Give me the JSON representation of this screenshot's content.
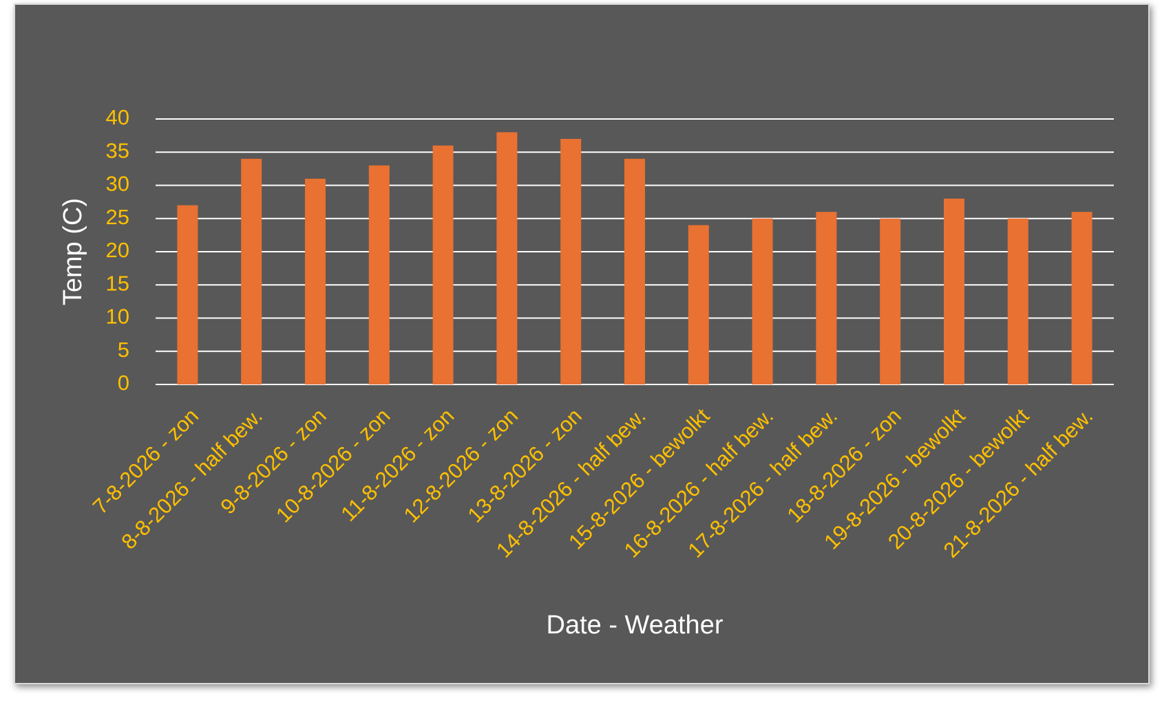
{
  "chart_data": {
    "type": "bar",
    "x_label": "Date - Weather",
    "y_label": "Temp (C)",
    "categories": [
      "7-8-2026 - zon",
      "8-8-2026 - half bew.",
      "9-8-2026 - zon",
      "10-8-2026 - zon",
      "11-8-2026 - zon",
      "12-8-2026 - zon",
      "13-8-2026 - zon",
      "14-8-2026 - half bew.",
      "15-8-2026 - bewolkt",
      "16-8-2026 - half bew.",
      "17-8-2026 - half bew.",
      "18-8-2026 - zon",
      "19-8-2026 - bewolkt",
      "20-8-2026 - bewolkt",
      "21-8-2026 - half bew."
    ],
    "values": [
      27,
      34,
      31,
      33,
      36,
      38,
      37,
      34,
      24,
      25,
      26,
      25,
      28,
      25,
      26
    ],
    "color": "#e97132",
    "ylim": [
      0,
      40
    ],
    "yticks": [
      0,
      5,
      10,
      15,
      20,
      25,
      30,
      35,
      40
    ],
    "grid": true
  }
}
